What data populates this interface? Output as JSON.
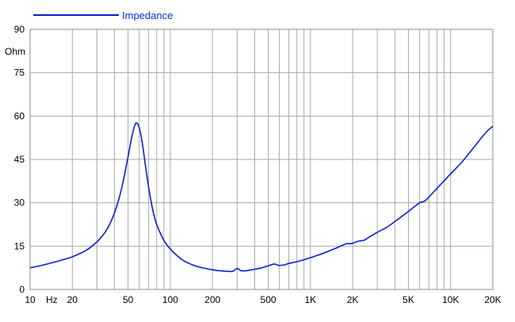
{
  "chart_data": {
    "type": "line",
    "x_scale": "log",
    "xlim": [
      10,
      20000
    ],
    "ylim": [
      0,
      90
    ],
    "grid": true,
    "legend_position": "top-left",
    "ylabel": "Ohm",
    "xlabel": "Hz",
    "y_ticks": [
      0,
      15,
      30,
      45,
      60,
      75,
      90
    ],
    "x_ticks": [
      {
        "value": 10,
        "label": "10"
      },
      {
        "value": 20,
        "label": "20"
      },
      {
        "value": 50,
        "label": "50"
      },
      {
        "value": 100,
        "label": "100"
      },
      {
        "value": 200,
        "label": "200"
      },
      {
        "value": 500,
        "label": "500"
      },
      {
        "value": 1000,
        "label": "1K"
      },
      {
        "value": 2000,
        "label": "2K"
      },
      {
        "value": 5000,
        "label": "5K"
      },
      {
        "value": 10000,
        "label": "10K"
      },
      {
        "value": 20000,
        "label": "20K"
      }
    ],
    "series": [
      {
        "name": "Impedance",
        "color": "#0a1fd0",
        "x": [
          10,
          12,
          15,
          18,
          20,
          25,
          30,
          35,
          40,
          45,
          50,
          53,
          56,
          58,
          60,
          63,
          66,
          70,
          75,
          80,
          90,
          100,
          120,
          150,
          200,
          250,
          280,
          300,
          320,
          350,
          400,
          450,
          500,
          550,
          580,
          600,
          650,
          700,
          800,
          900,
          1000,
          1200,
          1500,
          1800,
          1900,
          2000,
          2200,
          2400,
          2600,
          3000,
          3500,
          4000,
          5000,
          6000,
          6500,
          7000,
          8000,
          10000,
          12000,
          14000,
          16000,
          18000,
          20000
        ],
        "y": [
          7.5,
          8.3,
          9.5,
          10.6,
          11.3,
          13.5,
          16.5,
          20.5,
          26.5,
          35.0,
          46.0,
          52.5,
          57.0,
          57.5,
          56.0,
          51.0,
          44.0,
          35.5,
          27.5,
          22.5,
          17.0,
          14.0,
          10.5,
          8.2,
          6.8,
          6.3,
          6.3,
          7.3,
          6.5,
          6.5,
          7.0,
          7.5,
          8.2,
          8.8,
          8.5,
          8.3,
          8.5,
          9.0,
          9.6,
          10.3,
          11.0,
          12.3,
          14.2,
          15.8,
          15.8,
          16.0,
          16.7,
          17.0,
          18.0,
          19.8,
          21.5,
          23.5,
          27.0,
          30.0,
          30.5,
          32.0,
          35.0,
          40.0,
          44.0,
          48.0,
          51.5,
          54.5,
          56.5
        ]
      }
    ]
  }
}
